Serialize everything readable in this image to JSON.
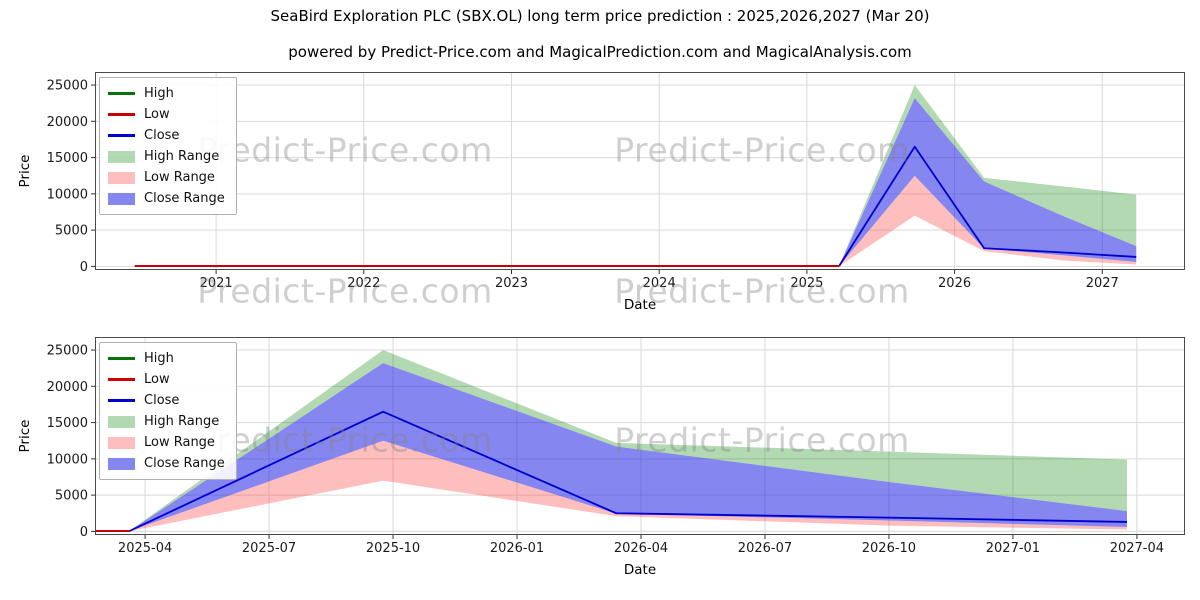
{
  "header": {
    "title": "SeaBird Exploration PLC (SBX.OL) long term price prediction : 2025,2026,2027 (Mar 20)",
    "subtitle": "powered by Predict-Price.com and MagicalPrediction.com and MagicalAnalysis.com"
  },
  "watermark": {
    "text": "Predict-Price.com"
  },
  "colors": {
    "high_line": "#0a720a",
    "low_line": "#cc0000",
    "close_line": "#0000cd",
    "high_range_fill": "rgba(0,128,0,0.30)",
    "low_range_fill": "rgba(255,40,40,0.30)",
    "close_range_fill": "rgba(35,35,230,0.55)",
    "grid": "#d9d9d9",
    "spine": "#4a4a4a",
    "tick": "#333333",
    "watermark": "rgba(128,128,128,0.38)"
  },
  "chart_data": [
    {
      "type": "line",
      "name": "full-history",
      "xlabel": "Date",
      "ylabel": "Price",
      "xlim": [
        2020.18,
        2027.56
      ],
      "ylim": [
        -500,
        26800
      ],
      "xticks": {
        "values": [
          2021,
          2022,
          2023,
          2024,
          2025,
          2026,
          2027
        ],
        "labels": [
          "2021",
          "2022",
          "2023",
          "2024",
          "2025",
          "2026",
          "2027"
        ]
      },
      "yticks": {
        "values": [
          0,
          5000,
          10000,
          15000,
          20000,
          25000
        ],
        "labels": [
          "0",
          "5000",
          "10000",
          "15000",
          "20000",
          "25000"
        ]
      },
      "legend": [
        {
          "label": "High",
          "swatch": "line",
          "color_key": "high_line"
        },
        {
          "label": "Low",
          "swatch": "line",
          "color_key": "low_line"
        },
        {
          "label": "Close",
          "swatch": "line",
          "color_key": "close_line"
        },
        {
          "label": "High Range",
          "swatch": "fill",
          "color_key": "high_range_fill"
        },
        {
          "label": "Low Range",
          "swatch": "fill",
          "color_key": "low_range_fill"
        },
        {
          "label": "Close Range",
          "swatch": "fill",
          "color_key": "close_range_fill"
        }
      ],
      "historical": {
        "x": [
          2020.45,
          2025.22
        ],
        "high": [
          60,
          60
        ],
        "low": [
          60,
          60
        ],
        "close": [
          60,
          60
        ]
      },
      "prediction": {
        "x": [
          2025.22,
          2025.73,
          2026.2,
          2026.75,
          2027.23
        ],
        "close": [
          100,
          16500,
          2500,
          1900,
          1300
        ],
        "bands": {
          "high_range": {
            "upper": [
              150,
              25000,
              12200,
              11000,
              9900
            ],
            "lower": [
              120,
              23200,
              11700,
              6800,
              2800
            ]
          },
          "close_range": {
            "upper": [
              120,
              23200,
              11700,
              6800,
              2800
            ],
            "lower": [
              80,
              12500,
              2450,
              1500,
              600
            ]
          },
          "low_range": {
            "upper": [
              80,
              12500,
              2450,
              1500,
              600
            ],
            "lower": [
              50,
              7000,
              2100,
              800,
              250
            ]
          }
        }
      }
    },
    {
      "type": "line",
      "name": "prediction-zoom",
      "xlabel": "Date",
      "ylabel": "Price",
      "xlim": [
        2025.149,
        2027.347
      ],
      "ylim": [
        -500,
        26800
      ],
      "xticks": {
        "values": [
          2025.25,
          2025.5,
          2025.75,
          2026.0,
          2026.25,
          2026.5,
          2026.75,
          2027.0,
          2027.25
        ],
        "labels": [
          "2025-04",
          "2025-07",
          "2025-10",
          "2026-01",
          "2026-04",
          "2026-07",
          "2026-10",
          "2027-01",
          "2027-04"
        ]
      },
      "yticks": {
        "values": [
          0,
          5000,
          10000,
          15000,
          20000,
          25000
        ],
        "labels": [
          "0",
          "5000",
          "10000",
          "15000",
          "20000",
          "25000"
        ]
      },
      "legend": [
        {
          "label": "High",
          "swatch": "line",
          "color_key": "high_line"
        },
        {
          "label": "Low",
          "swatch": "line",
          "color_key": "low_line"
        },
        {
          "label": "Close",
          "swatch": "line",
          "color_key": "close_line"
        },
        {
          "label": "High Range",
          "swatch": "fill",
          "color_key": "high_range_fill"
        },
        {
          "label": "Low Range",
          "swatch": "fill",
          "color_key": "low_range_fill"
        },
        {
          "label": "Close Range",
          "swatch": "fill",
          "color_key": "close_range_fill"
        }
      ],
      "historical": {
        "x": [
          2020.45,
          2025.22
        ],
        "high": [
          60,
          60
        ],
        "low": [
          60,
          60
        ],
        "close": [
          60,
          60
        ]
      },
      "prediction": {
        "x": [
          2025.22,
          2025.73,
          2026.2,
          2026.75,
          2027.23
        ],
        "close": [
          100,
          16500,
          2500,
          1900,
          1300
        ],
        "bands": {
          "high_range": {
            "upper": [
              150,
              25000,
              12200,
              11000,
              9900
            ],
            "lower": [
              120,
              23200,
              11700,
              6800,
              2800
            ]
          },
          "close_range": {
            "upper": [
              120,
              23200,
              11700,
              6800,
              2800
            ],
            "lower": [
              80,
              12500,
              2450,
              1500,
              600
            ]
          },
          "low_range": {
            "upper": [
              80,
              12500,
              2450,
              1500,
              600
            ],
            "lower": [
              50,
              7000,
              2100,
              800,
              250
            ]
          }
        }
      }
    }
  ]
}
